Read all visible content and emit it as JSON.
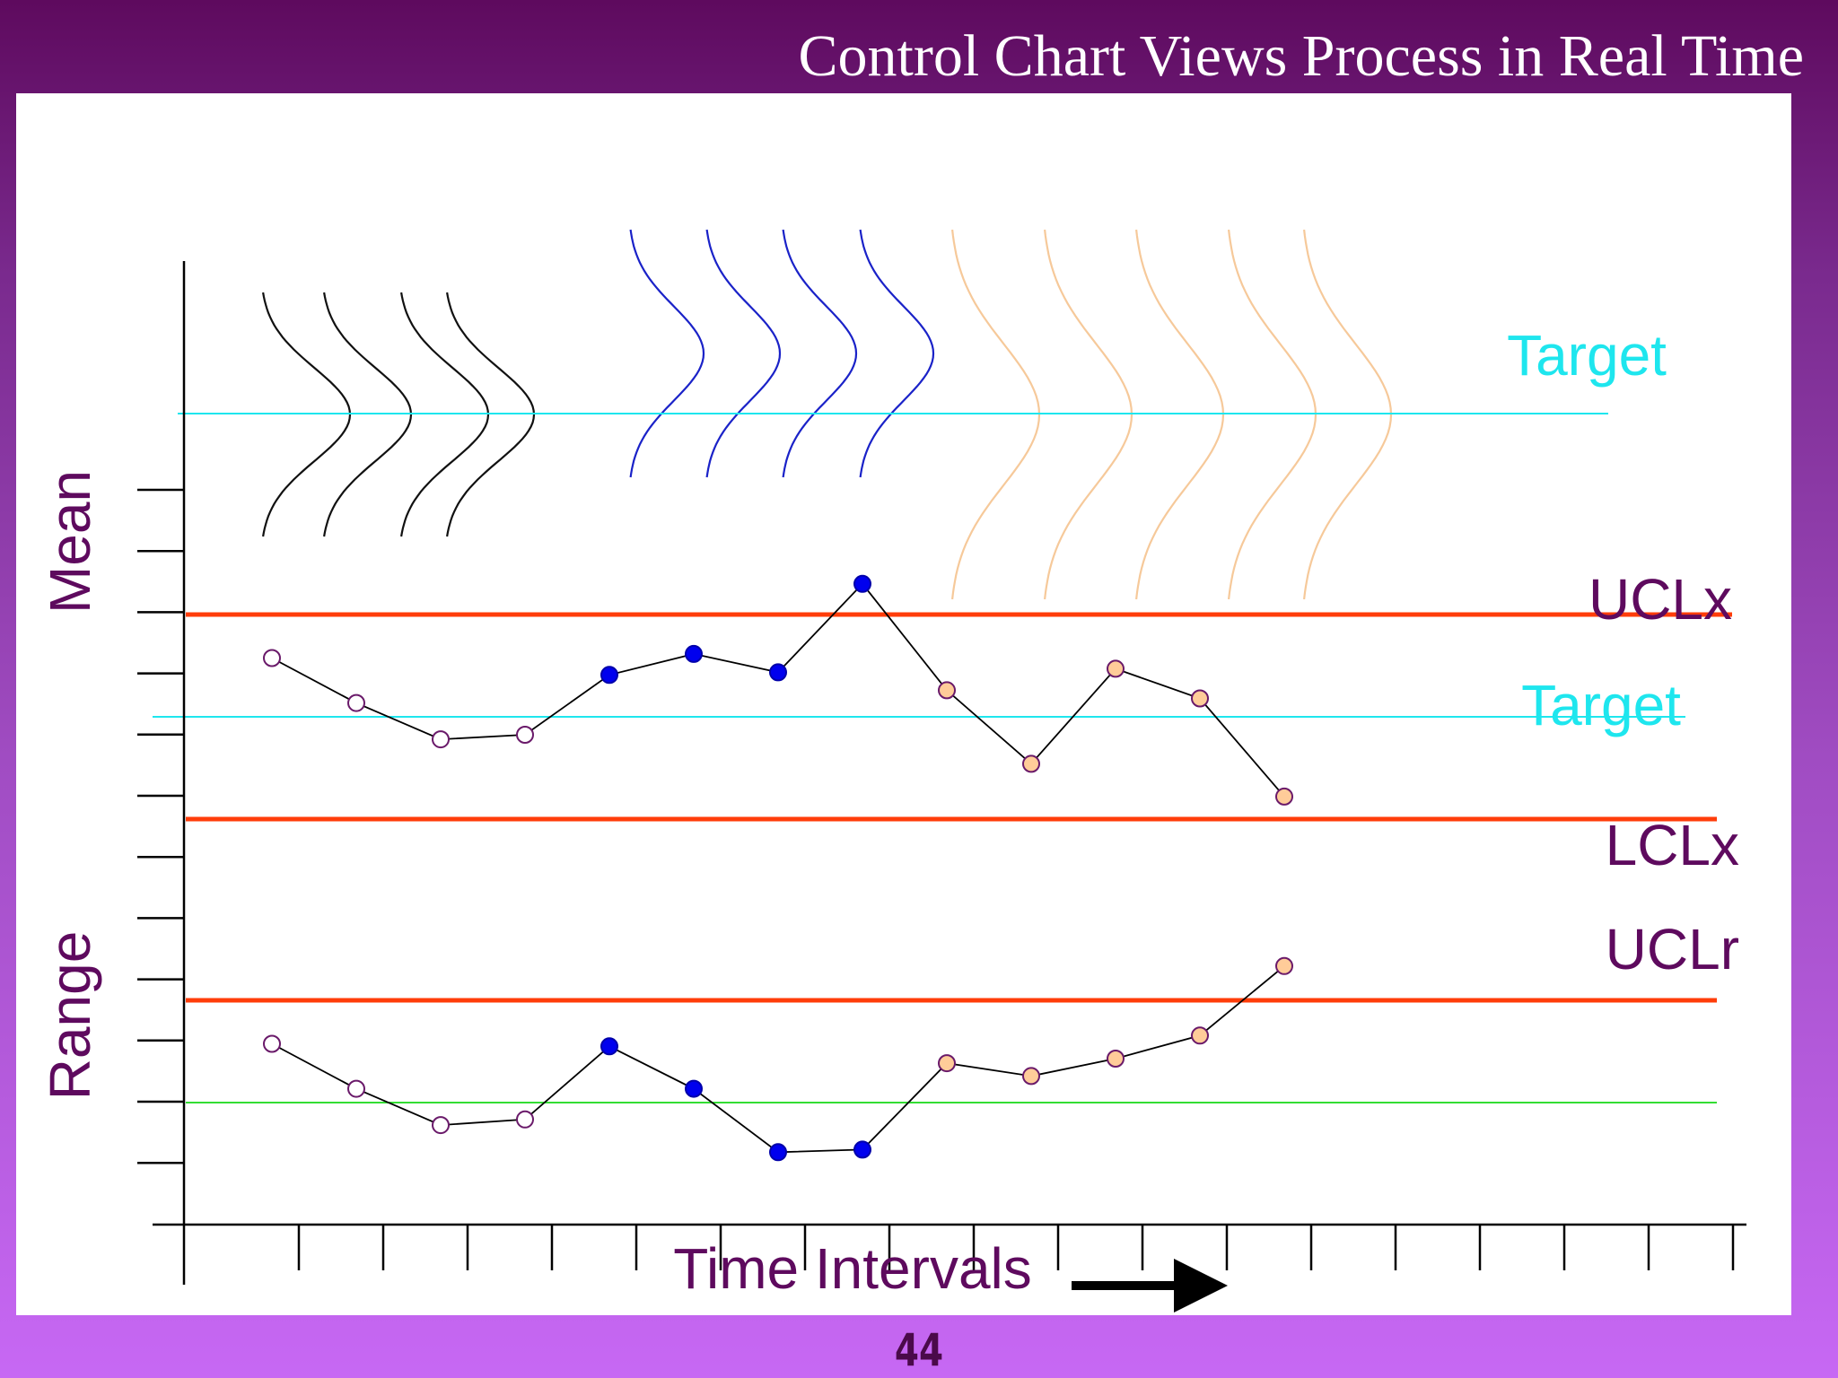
{
  "slide": {
    "title": "Control Chart Views Process in Real Time",
    "page_number": "44"
  },
  "colors": {
    "background_top": "#5e0a5e",
    "background_bottom": "#c768f4",
    "title_text": "#ffffff",
    "label_purple": "#5e0a5e",
    "target_cyan": "#1ee6ee",
    "control_limit": "#ff3d0a",
    "range_center": "#33dd33",
    "phase_1": "#ffffff",
    "phase_2": "#0000ee",
    "phase_3": "#ffcc99",
    "curve_phase_1": "#111111",
    "curve_phase_2": "#1a22c8",
    "curve_phase_3": "#f6c99a"
  },
  "chart_data": {
    "type": "line",
    "title": "Control Chart Views Process in Real Time",
    "xlabel": "Time Intervals",
    "axis_labels": {
      "mean": "Mean",
      "range": "Range"
    },
    "x": [
      1,
      2,
      3,
      4,
      5,
      6,
      7,
      8,
      9,
      10,
      11,
      12,
      13
    ],
    "distributions": {
      "label": "Target",
      "groups": [
        {
          "phase": 1,
          "count": 4,
          "shift": "centered on target"
        },
        {
          "phase": 2,
          "count": 4,
          "shift": "above target"
        },
        {
          "phase": 3,
          "count": 5,
          "shift": "centered on target, wider spread"
        }
      ]
    },
    "mean_chart": {
      "limits": [
        {
          "label": "UCLx",
          "value": 2.0
        },
        {
          "label": "Target",
          "value": 0
        },
        {
          "label": "LCLx",
          "value": -2.0
        }
      ],
      "series": [
        {
          "phase": 1,
          "x": [
            1,
            2,
            3,
            4
          ],
          "values": [
            1.15,
            0.27,
            -0.44,
            -0.35
          ]
        },
        {
          "phase": 2,
          "x": [
            5,
            6,
            7,
            8
          ],
          "values": [
            0.82,
            1.23,
            0.87,
            2.6
          ]
        },
        {
          "phase": 3,
          "x": [
            9,
            10,
            11,
            12,
            13
          ],
          "values": [
            0.52,
            -0.92,
            0.94,
            0.36,
            -1.56
          ]
        }
      ]
    },
    "range_chart": {
      "limits": [
        {
          "label": "UCLr",
          "value": 2.0
        },
        {
          "label": "",
          "value": 0
        }
      ],
      "series": [
        {
          "phase": 1,
          "x": [
            1,
            2,
            3,
            4
          ],
          "values": [
            1.15,
            0.27,
            -0.44,
            -0.33
          ]
        },
        {
          "phase": 2,
          "x": [
            5,
            6,
            7,
            8
          ],
          "values": [
            1.1,
            0.27,
            -0.97,
            -0.92
          ]
        },
        {
          "phase": 3,
          "x": [
            9,
            10,
            11,
            12,
            13
          ],
          "values": [
            0.77,
            0.52,
            0.86,
            1.31,
            2.67
          ]
        }
      ]
    }
  }
}
